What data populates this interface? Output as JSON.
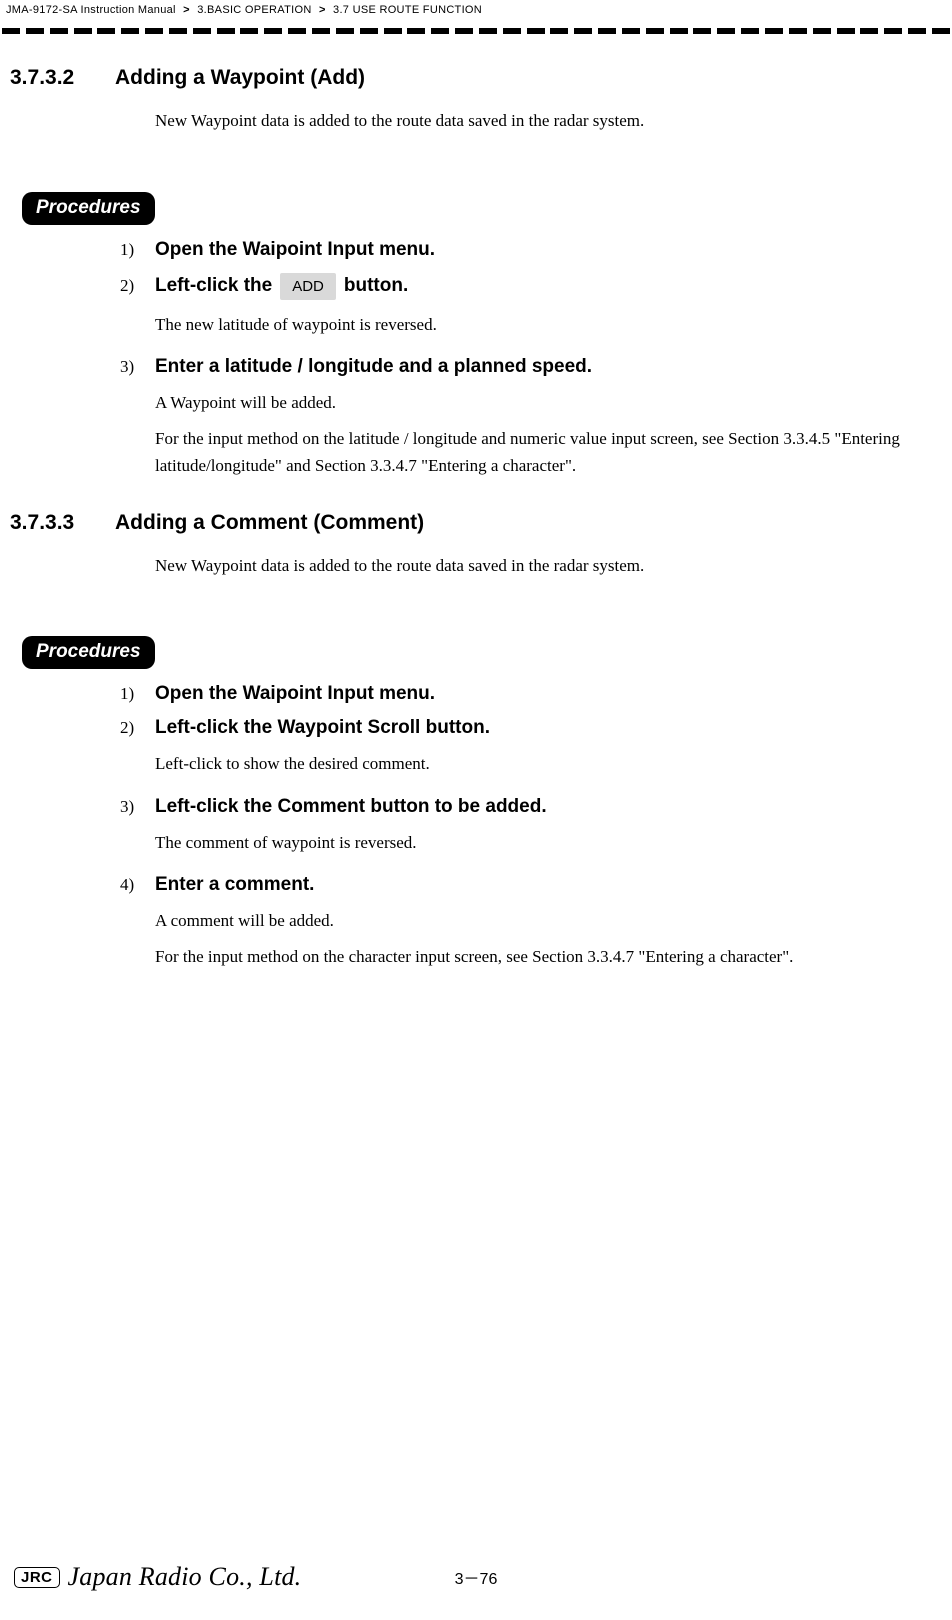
{
  "breadcrumb": {
    "manual": "JMA-9172-SA Instruction Manual",
    "chapter": "3.BASIC OPERATION",
    "section": "3.7  USE ROUTE FUNCTION"
  },
  "sections": [
    {
      "num": "3.7.3.2",
      "title": "Adding a Waypoint (Add)",
      "intro": "New Waypoint data is added to the route data saved in the radar system.",
      "steps": [
        {
          "num": "1)",
          "title_pre": "Open the Waipoint Input menu.",
          "chip": null,
          "title_post": null,
          "body": []
        },
        {
          "num": "2)",
          "title_pre": "Left-click the",
          "chip": "ADD",
          "title_post": " button.",
          "body": [
            "The new latitude of waypoint is reversed."
          ]
        },
        {
          "num": "3)",
          "title_pre": "Enter a latitude / longitude and a planned speed.",
          "chip": null,
          "title_post": null,
          "body": [
            "A Waypoint will be added.",
            "For the input method on the latitude / longitude and numeric value input screen, see Section 3.3.4.5 \"Entering latitude/longitude\" and Section 3.3.4.7 \"Entering a character\"."
          ]
        }
      ]
    },
    {
      "num": "3.7.3.3",
      "title": "Adding a Comment (Comment)",
      "intro": "New Waypoint data is added to the route data saved in the radar system.",
      "steps": [
        {
          "num": "1)",
          "title_pre": "Open the Waipoint Input menu.",
          "chip": null,
          "title_post": null,
          "body": []
        },
        {
          "num": "2)",
          "title_pre": "Left-click the  Waypoint Scroll  button.",
          "chip": null,
          "title_post": null,
          "body": [
            "Left-click to show the desired comment."
          ]
        },
        {
          "num": "3)",
          "title_pre": "Left-click the  Comment  button to be added.",
          "chip": null,
          "title_post": null,
          "body": [
            "The comment of waypoint is reversed."
          ]
        },
        {
          "num": "4)",
          "title_pre": "Enter a comment.",
          "chip": null,
          "title_post": null,
          "body": [
            "A comment will be added.",
            "For the input method on the character input screen, see Section 3.3.4.7 \"Entering a character\"."
          ]
        }
      ]
    }
  ],
  "procedures_label": "Procedures",
  "footer": {
    "jrc": "JRC",
    "company": "Japan Radio Co., Ltd.",
    "page": "3－76"
  },
  "style": {
    "dash_count": 40,
    "colors": {
      "bg": "#ffffff",
      "text": "#000000",
      "chip_bg": "#d9d9d9"
    }
  }
}
